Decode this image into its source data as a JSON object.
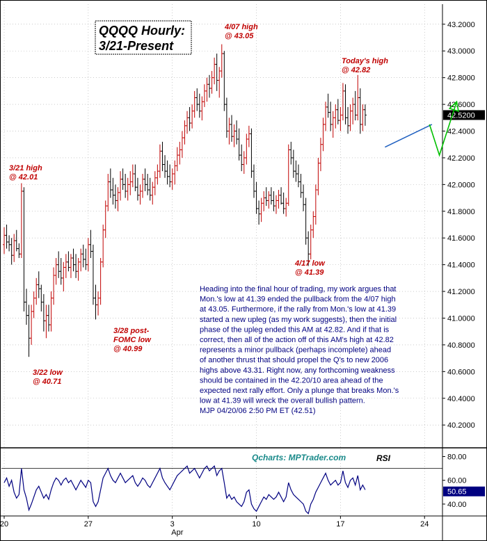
{
  "chart_data": {
    "type": "candlestick",
    "title_lines": [
      "QQQQ Hourly:",
      "3/21-Present"
    ],
    "price_axis": {
      "min": 40.05,
      "max": 43.35,
      "ticks": [
        43.2,
        43.0,
        42.8,
        42.6,
        42.4,
        42.2,
        42.0,
        41.8,
        41.6,
        41.4,
        41.2,
        41.0,
        40.8,
        40.6,
        40.4,
        40.2
      ],
      "tick_labels": [
        "43.2000",
        "43.0000",
        "42.8000",
        "42.6000",
        "42.4000",
        "42.2000",
        "42.0000",
        "41.8000",
        "41.6000",
        "41.4000",
        "41.2000",
        "41.0000",
        "40.8000",
        "40.6000",
        "40.4000",
        "40.2000"
      ],
      "current_label": "42.5200",
      "current_value": 42.52
    },
    "x_axis": {
      "ticks": [
        {
          "label": "20",
          "bar": 0
        },
        {
          "label": "27",
          "bar": 34
        },
        {
          "label": "3",
          "bar": 68
        },
        {
          "label": "10",
          "bar": 102
        },
        {
          "label": "17",
          "bar": 136
        },
        {
          "label": "24",
          "bar": 170
        }
      ],
      "month_label": "Apr",
      "month_bar": 70,
      "total_bars": 176
    },
    "bars": [
      [
        41.55,
        41.68,
        41.48,
        41.62
      ],
      [
        41.62,
        41.7,
        41.52,
        41.57
      ],
      [
        41.57,
        41.62,
        41.5,
        41.55
      ],
      [
        41.55,
        41.6,
        41.4,
        41.47
      ],
      [
        41.47,
        41.63,
        41.42,
        41.58
      ],
      [
        41.58,
        41.66,
        41.5,
        41.52
      ],
      [
        41.52,
        41.56,
        41.45,
        41.48
      ],
      [
        41.48,
        42.01,
        41.45,
        41.95
      ],
      [
        41.95,
        41.98,
        41.05,
        41.12
      ],
      [
        41.12,
        41.22,
        40.95,
        41.02
      ],
      [
        41.02,
        41.1,
        40.71,
        40.85
      ],
      [
        40.85,
        41.1,
        40.8,
        41.05
      ],
      [
        41.05,
        41.2,
        41.0,
        41.15
      ],
      [
        41.15,
        41.3,
        41.1,
        41.25
      ],
      [
        41.25,
        41.35,
        41.15,
        41.22
      ],
      [
        41.22,
        41.25,
        41.05,
        41.12
      ],
      [
        41.12,
        41.18,
        40.9,
        40.98
      ],
      [
        40.98,
        41.1,
        40.85,
        41.02
      ],
      [
        41.02,
        41.1,
        40.9,
        40.95
      ],
      [
        40.95,
        41.2,
        40.9,
        41.15
      ],
      [
        41.15,
        41.38,
        41.1,
        41.32
      ],
      [
        41.32,
        41.45,
        41.25,
        41.4
      ],
      [
        41.4,
        41.5,
        41.3,
        41.35
      ],
      [
        41.35,
        41.45,
        41.25,
        41.3
      ],
      [
        41.3,
        41.42,
        41.2,
        41.38
      ],
      [
        41.38,
        41.48,
        41.3,
        41.42
      ],
      [
        41.42,
        41.5,
        41.35,
        41.38
      ],
      [
        41.38,
        41.48,
        41.3,
        41.45
      ],
      [
        41.45,
        41.52,
        41.35,
        41.4
      ],
      [
        41.4,
        41.48,
        41.3,
        41.35
      ],
      [
        41.35,
        41.45,
        41.28,
        41.42
      ],
      [
        41.42,
        41.52,
        41.35,
        41.48
      ],
      [
        41.48,
        41.55,
        41.38,
        41.44
      ],
      [
        41.44,
        41.52,
        41.36,
        41.4
      ],
      [
        41.4,
        41.6,
        41.35,
        41.55
      ],
      [
        41.55,
        41.66,
        41.45,
        41.5
      ],
      [
        41.5,
        41.55,
        41.1,
        41.15
      ],
      [
        41.15,
        41.25,
        40.99,
        41.1
      ],
      [
        41.1,
        41.2,
        41.02,
        41.15
      ],
      [
        41.15,
        41.45,
        41.1,
        41.42
      ],
      [
        41.42,
        41.7,
        41.38,
        41.66
      ],
      [
        41.66,
        41.88,
        41.6,
        41.84
      ],
      [
        41.84,
        42.08,
        41.8,
        42.02
      ],
      [
        42.02,
        42.12,
        41.9,
        41.96
      ],
      [
        41.96,
        42.05,
        41.85,
        41.92
      ],
      [
        41.92,
        42.0,
        41.82,
        41.88
      ],
      [
        41.88,
        41.98,
        41.8,
        41.94
      ],
      [
        41.94,
        42.1,
        41.88,
        42.04
      ],
      [
        42.04,
        42.12,
        41.96,
        42.0
      ],
      [
        42.0,
        42.08,
        41.9,
        41.95
      ],
      [
        41.95,
        42.05,
        41.88,
        42.0
      ],
      [
        42.0,
        42.1,
        41.92,
        42.02
      ],
      [
        42.02,
        42.15,
        41.98,
        42.08
      ],
      [
        42.08,
        42.15,
        41.95,
        41.98
      ],
      [
        41.98,
        42.05,
        41.88,
        41.92
      ],
      [
        41.92,
        42.0,
        41.85,
        41.95
      ],
      [
        41.95,
        42.08,
        41.9,
        42.04
      ],
      [
        42.04,
        42.12,
        41.95,
        42.0
      ],
      [
        42.0,
        42.08,
        41.92,
        41.96
      ],
      [
        41.96,
        42.05,
        41.88,
        41.92
      ],
      [
        41.92,
        42.02,
        41.85,
        41.98
      ],
      [
        41.98,
        42.1,
        41.92,
        42.05
      ],
      [
        42.05,
        42.15,
        42.0,
        42.1
      ],
      [
        42.1,
        42.3,
        42.05,
        42.25
      ],
      [
        42.25,
        42.32,
        42.1,
        42.15
      ],
      [
        42.15,
        42.22,
        42.05,
        42.1
      ],
      [
        42.1,
        42.18,
        42.0,
        42.06
      ],
      [
        42.06,
        42.15,
        41.98,
        42.02
      ],
      [
        42.02,
        42.12,
        41.96,
        42.08
      ],
      [
        42.08,
        42.18,
        42.0,
        42.14
      ],
      [
        42.14,
        42.28,
        42.1,
        42.22
      ],
      [
        42.22,
        42.32,
        42.15,
        42.26
      ],
      [
        42.26,
        42.4,
        42.2,
        42.35
      ],
      [
        42.35,
        42.48,
        42.3,
        42.44
      ],
      [
        42.44,
        42.55,
        42.38,
        42.5
      ],
      [
        42.5,
        42.58,
        42.4,
        42.46
      ],
      [
        42.46,
        42.6,
        42.42,
        42.55
      ],
      [
        42.55,
        42.7,
        42.5,
        42.65
      ],
      [
        42.65,
        42.72,
        42.55,
        42.6
      ],
      [
        42.6,
        42.68,
        42.5,
        42.55
      ],
      [
        42.55,
        42.66,
        42.48,
        42.62
      ],
      [
        42.62,
        42.75,
        42.58,
        42.7
      ],
      [
        42.7,
        42.8,
        42.62,
        42.75
      ],
      [
        42.75,
        42.82,
        42.65,
        42.72
      ],
      [
        42.72,
        42.85,
        42.68,
        42.8
      ],
      [
        42.8,
        42.95,
        42.75,
        42.9
      ],
      [
        42.9,
        42.98,
        42.7,
        42.78
      ],
      [
        42.78,
        42.88,
        42.65,
        42.85
      ],
      [
        42.85,
        43.05,
        42.8,
        42.98
      ],
      [
        42.98,
        43.0,
        42.55,
        42.6
      ],
      [
        42.6,
        42.65,
        42.35,
        42.4
      ],
      [
        42.4,
        42.5,
        42.3,
        42.45
      ],
      [
        42.45,
        42.52,
        42.32,
        42.36
      ],
      [
        42.36,
        42.45,
        42.28,
        42.4
      ],
      [
        42.4,
        42.48,
        42.3,
        42.34
      ],
      [
        42.34,
        42.42,
        42.18,
        42.22
      ],
      [
        42.22,
        42.3,
        42.1,
        42.15
      ],
      [
        42.15,
        42.25,
        42.08,
        42.2
      ],
      [
        42.2,
        42.38,
        42.15,
        42.34
      ],
      [
        42.34,
        42.44,
        42.28,
        42.38
      ],
      [
        42.38,
        42.42,
        42.05,
        42.1
      ],
      [
        42.1,
        42.15,
        41.9,
        41.95
      ],
      [
        41.95,
        42.02,
        41.78,
        41.82
      ],
      [
        41.82,
        41.88,
        41.7,
        41.78
      ],
      [
        41.78,
        41.9,
        41.72,
        41.86
      ],
      [
        41.86,
        41.95,
        41.8,
        41.9
      ],
      [
        41.9,
        41.98,
        41.84,
        41.88
      ],
      [
        41.88,
        41.95,
        41.82,
        41.92
      ],
      [
        41.92,
        41.98,
        41.85,
        41.88
      ],
      [
        41.88,
        41.95,
        41.8,
        41.84
      ],
      [
        41.84,
        41.92,
        41.78,
        41.88
      ],
      [
        41.88,
        41.96,
        41.82,
        41.92
      ],
      [
        41.92,
        41.98,
        41.85,
        41.86
      ],
      [
        41.86,
        41.94,
        41.78,
        41.82
      ],
      [
        41.82,
        41.9,
        41.76,
        41.86
      ],
      [
        41.86,
        42.3,
        41.84,
        42.26
      ],
      [
        42.26,
        42.32,
        42.15,
        42.2
      ],
      [
        42.2,
        42.26,
        42.05,
        42.1
      ],
      [
        42.1,
        42.18,
        42.02,
        42.08
      ],
      [
        42.08,
        42.15,
        41.98,
        42.02
      ],
      [
        42.02,
        42.08,
        41.9,
        41.94
      ],
      [
        41.94,
        42.0,
        41.8,
        41.85
      ],
      [
        41.85,
        41.9,
        41.55,
        41.6
      ],
      [
        41.6,
        41.65,
        41.39,
        41.48
      ],
      [
        41.48,
        41.7,
        41.44,
        41.66
      ],
      [
        41.66,
        41.8,
        41.6,
        41.76
      ],
      [
        41.76,
        42.0,
        41.7,
        41.96
      ],
      [
        41.96,
        42.2,
        41.92,
        42.16
      ],
      [
        42.16,
        42.35,
        42.1,
        42.3
      ],
      [
        42.3,
        42.5,
        42.25,
        42.45
      ],
      [
        42.45,
        42.62,
        42.4,
        42.58
      ],
      [
        42.58,
        42.68,
        42.5,
        42.54
      ],
      [
        42.54,
        42.62,
        42.4,
        42.45
      ],
      [
        42.45,
        42.55,
        42.35,
        42.5
      ],
      [
        42.5,
        42.6,
        42.42,
        42.56
      ],
      [
        42.56,
        42.64,
        42.45,
        42.48
      ],
      [
        42.48,
        42.58,
        42.4,
        42.52
      ],
      [
        42.52,
        42.76,
        42.48,
        42.7
      ],
      [
        42.7,
        42.75,
        42.45,
        42.5
      ],
      [
        42.5,
        42.58,
        42.38,
        42.44
      ],
      [
        42.44,
        42.6,
        42.4,
        42.55
      ],
      [
        42.55,
        42.65,
        42.45,
        42.6
      ],
      [
        42.6,
        42.7,
        42.48,
        42.52
      ],
      [
        42.52,
        42.82,
        42.48,
        42.65
      ],
      [
        42.65,
        42.72,
        42.38,
        42.45
      ],
      [
        42.45,
        42.6,
        42.4,
        42.56
      ],
      [
        42.56,
        42.6,
        42.44,
        42.52
      ]
    ],
    "annotations": [
      {
        "lines": [
          "3/21 high",
          "@ 42.01"
        ]
      },
      {
        "lines": [
          "3/22 low",
          "@ 40.71"
        ]
      },
      {
        "lines": [
          "3/28  post-",
          "FOMC low",
          "@ 40.99"
        ]
      },
      {
        "lines": [
          "4/07 high",
          "@ 43.05"
        ]
      },
      {
        "lines": [
          "4/17 low",
          "@ 41.39"
        ]
      },
      {
        "lines": [
          "Today's high",
          "@ 42.82"
        ]
      }
    ],
    "commentary_lines": [
      "Heading into the final hour of trading, my work argues that",
      "Mon.'s low at 41.39 ended the pullback from the 4/07 high",
      "at 43.05. Furthermore, if the rally from Mon.'s low at 41.39",
      "started a new upleg (as my work suggests), then the initial",
      "phase of the upleg ended this AM at 42.82. And if that is",
      "correct, then all of the action off of this AM's high at 42.82",
      "represents a minor pullback (perhaps incomplete) ahead",
      "of another thrust that should propel the Q's to new 2006",
      "highs above 43.31. Right now, any forthcoming weakness",
      "should be contained in the 42.20/10 area ahead of the",
      "expected next rally effort.  Only a plunge that breaks Mon.'s",
      "low at 41.39 will wreck the overall bullish pattern.",
      "MJP  04/20/06 2:50 PM ET (42.51)"
    ],
    "projection": [
      {
        "bar": 172,
        "price": 42.45
      },
      {
        "bar": 176,
        "price": 42.22
      },
      {
        "bar": 183,
        "price": 42.62
      }
    ],
    "trendline": [
      {
        "bar": 154,
        "price": 42.28
      },
      {
        "bar": 173,
        "price": 42.45
      }
    ],
    "rsi": {
      "label": "RSI",
      "source": "Qcharts: MPTrader.com",
      "axis": {
        "min": 30,
        "max": 85,
        "ticks": [
          80.0,
          60.0,
          40.0
        ],
        "tick_labels": [
          "80.00",
          "60.00",
          "40.00"
        ]
      },
      "current_label": "50.65",
      "current_value": 50.65,
      "reference_levels": [
        70,
        30
      ],
      "values": [
        58,
        62,
        55,
        60,
        50,
        45,
        48,
        70,
        52,
        45,
        35,
        40,
        46,
        52,
        55,
        50,
        45,
        48,
        44,
        52,
        58,
        62,
        60,
        56,
        60,
        62,
        58,
        60,
        56,
        52,
        56,
        60,
        57,
        54,
        60,
        58,
        42,
        38,
        42,
        52,
        62,
        66,
        70,
        64,
        60,
        58,
        62,
        66,
        62,
        58,
        60,
        62,
        64,
        58,
        55,
        58,
        62,
        60,
        56,
        54,
        58,
        62,
        66,
        70,
        62,
        58,
        55,
        52,
        56,
        60,
        64,
        66,
        68,
        70,
        72,
        66,
        68,
        70,
        66,
        62,
        66,
        70,
        72,
        68,
        70,
        72,
        64,
        68,
        70,
        58,
        45,
        48,
        44,
        46,
        42,
        40,
        38,
        42,
        50,
        52,
        40,
        36,
        34,
        38,
        42,
        46,
        44,
        48,
        46,
        44,
        46,
        50,
        46,
        42,
        46,
        58,
        52,
        48,
        46,
        44,
        42,
        40,
        34,
        32,
        40,
        44,
        50,
        54,
        58,
        62,
        66,
        60,
        56,
        58,
        60,
        56,
        58,
        68,
        58,
        54,
        60,
        62,
        56,
        64,
        52,
        56,
        52
      ]
    }
  }
}
